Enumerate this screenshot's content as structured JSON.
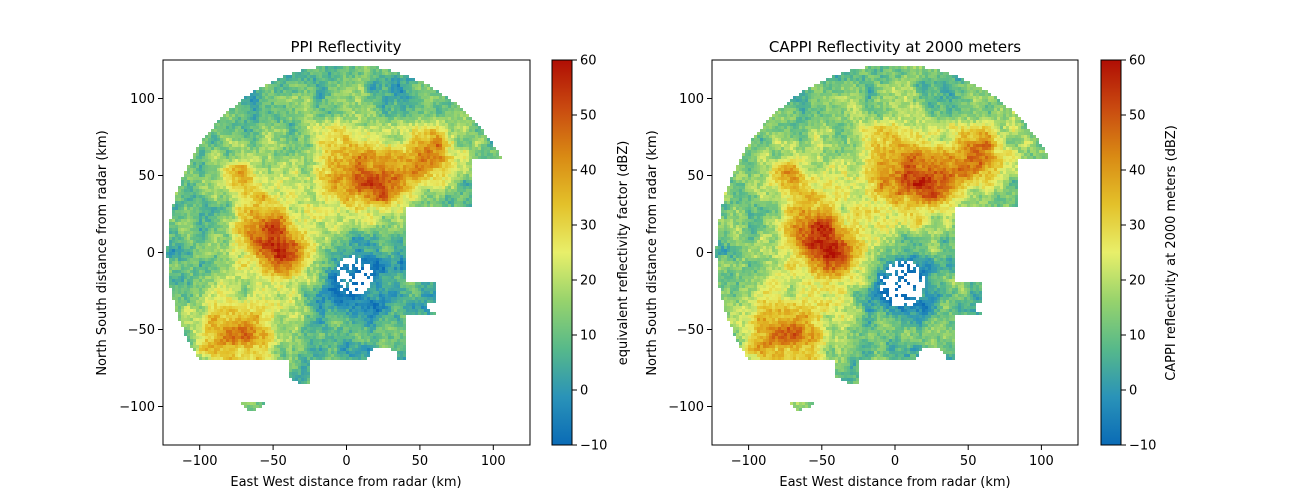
{
  "chart_data": [
    {
      "type": "heatmap",
      "title": "PPI Reflectivity",
      "xlabel": "East West distance from radar (km)",
      "ylabel": "North South distance from radar (km)",
      "xlim": [
        -125,
        125
      ],
      "ylim": [
        -125,
        125
      ],
      "xticks": [
        -100,
        -50,
        0,
        50,
        100
      ],
      "yticks": [
        -100,
        -50,
        0,
        50,
        100
      ],
      "xtick_labels": [
        "−100",
        "−50",
        "0",
        "50",
        "100"
      ],
      "ytick_labels": [
        "−100",
        "−50",
        "0",
        "50",
        "100"
      ],
      "colorbar": {
        "label": "equivalent reflectivity factor (dBZ)",
        "range": [
          -10,
          60
        ],
        "ticks": [
          -10,
          0,
          10,
          20,
          30,
          40,
          50,
          60
        ],
        "tick_labels": [
          "−10",
          "0",
          "10",
          "20",
          "30",
          "40",
          "50",
          "60"
        ],
        "colormap": "HomeyerRainbow"
      },
      "grid": false
    },
    {
      "type": "heatmap",
      "title": "CAPPI Reflectivity at 2000 meters",
      "xlabel": "East West distance from radar (km)",
      "ylabel": "North South distance from radar (km)",
      "xlim": [
        -125,
        125
      ],
      "ylim": [
        -125,
        125
      ],
      "xticks": [
        -100,
        -50,
        0,
        50,
        100
      ],
      "yticks": [
        -100,
        -50,
        0,
        50,
        100
      ],
      "xtick_labels": [
        "−100",
        "−50",
        "0",
        "50",
        "100"
      ],
      "ytick_labels": [
        "−100",
        "−50",
        "0",
        "50",
        "100"
      ],
      "colorbar": {
        "label": "CAPPI reflectivity at 2000 meters (dBZ)",
        "range": [
          -10,
          60
        ],
        "ticks": [
          -10,
          0,
          10,
          20,
          30,
          40,
          50,
          60
        ],
        "tick_labels": [
          "−10",
          "0",
          "10",
          "20",
          "30",
          "40",
          "50",
          "60"
        ],
        "colormap": "HomeyerRainbow"
      },
      "grid": false
    }
  ],
  "colormap_stops": [
    "#0a6bb6",
    "#2a93b8",
    "#57b98a",
    "#97d36c",
    "#e8ef6a",
    "#e3c12a",
    "#d98a14",
    "#c94a10",
    "#b00e04"
  ]
}
